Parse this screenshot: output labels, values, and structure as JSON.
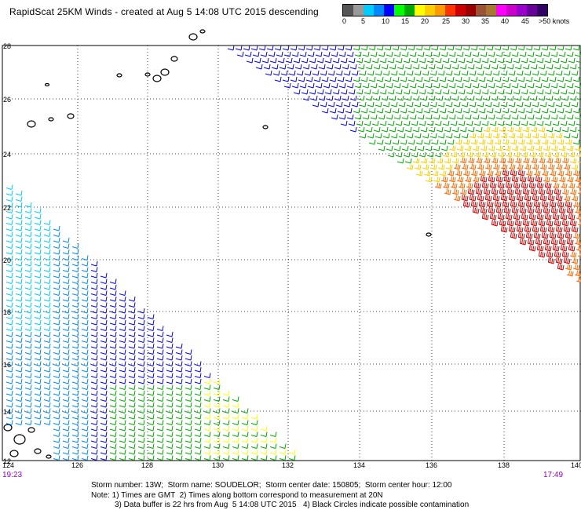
{
  "title": "RapidScat 25KM Winds - created at Aug  5 14:08 UTC 2015 descending",
  "scale": {
    "labels": [
      "0",
      "5",
      "10",
      "15",
      "20",
      "25",
      "30",
      "35",
      "40",
      "45",
      ">50 knots"
    ],
    "colors": [
      "#555555",
      "#999999",
      "#00ccff",
      "#0088ff",
      "#0000ff",
      "#00ff00",
      "#00aa00",
      "#ffff00",
      "#ffcc00",
      "#ff9900",
      "#ff3300",
      "#cc0000",
      "#990000",
      "#995533",
      "#aa7733",
      "#ff00ff",
      "#cc00cc",
      "#9900cc",
      "#660099",
      "#330066"
    ]
  },
  "axes": {
    "lat_labels": [
      "28",
      "26",
      "24",
      "22",
      "20",
      "18",
      "16",
      "14",
      "12"
    ],
    "lon_labels": [
      "124",
      "126",
      "128",
      "130",
      "132",
      "134",
      "136",
      "138",
      "140"
    ]
  },
  "times": {
    "left": "19:23",
    "right": "17:49"
  },
  "footer": {
    "line1": "Storm number: 13W;  Storm name: SOUDELOR;  Storm center date: 150805;  Storm center hour: 12:00",
    "line2": "Note: 1) Times are GMT  2) Times along bottom correspond to measurement at 20N",
    "line3": "3) Data buffer is 22 hrs from Aug  5 14:08 UTC 2015   4) Black Circles indicate possible contamination"
  }
}
